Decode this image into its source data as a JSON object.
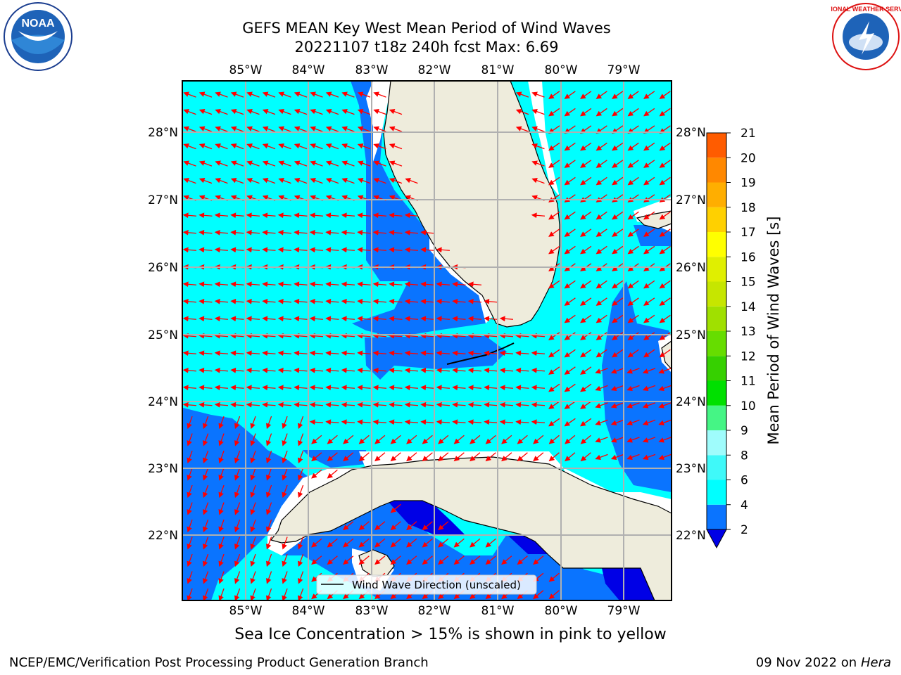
{
  "title": {
    "line1": "GEFS MEAN Key West Mean Period of Wind Waves",
    "line2": "20221107 t18z 240h fcst    Max: 6.69"
  },
  "map": {
    "lon_ticks": [
      "85°W",
      "84°W",
      "83°W",
      "82°W",
      "81°W",
      "80°W",
      "79°W"
    ],
    "lat_ticks": [
      "28°N",
      "27°N",
      "26°N",
      "25°N",
      "24°N",
      "23°N",
      "22°N"
    ],
    "legend_label": "Wind Wave Direction (unscaled)",
    "land_color": "#eeecdc",
    "arrow_color": "#ff0000",
    "grid_color": "#b0b0b0"
  },
  "colorbar": {
    "label": "Mean Period of Wind Waves [s]",
    "ticks": [
      "2",
      "4",
      "6",
      "8",
      "9",
      "10",
      "11",
      "12",
      "13",
      "14",
      "15",
      "16",
      "17",
      "18",
      "19",
      "20",
      "21"
    ],
    "colors": [
      "#0a74ff",
      "#00ffff",
      "#3ff9f9",
      "#9ffcfc",
      "#45f585",
      "#00e000",
      "#36d000",
      "#66dd00",
      "#a0e000",
      "#c6e600",
      "#e0ef00",
      "#ffff00",
      "#ffd000",
      "#ffae00",
      "#ff8800",
      "#ff5c00",
      "#ff2a00",
      "#ff0000"
    ],
    "under_color": "#0000e6"
  },
  "footer": {
    "ice_note": "Sea Ice Concentration > 15% is shown in pink to yellow",
    "credit": "NCEP/EMC/Verification Post Processing Product Generation Branch",
    "date": "09 Nov 2022 on",
    "machine": "Hera"
  },
  "logos": {
    "noaa_text": "NOAA",
    "nws_text": "NATIONAL WEATHER SERVICE"
  }
}
